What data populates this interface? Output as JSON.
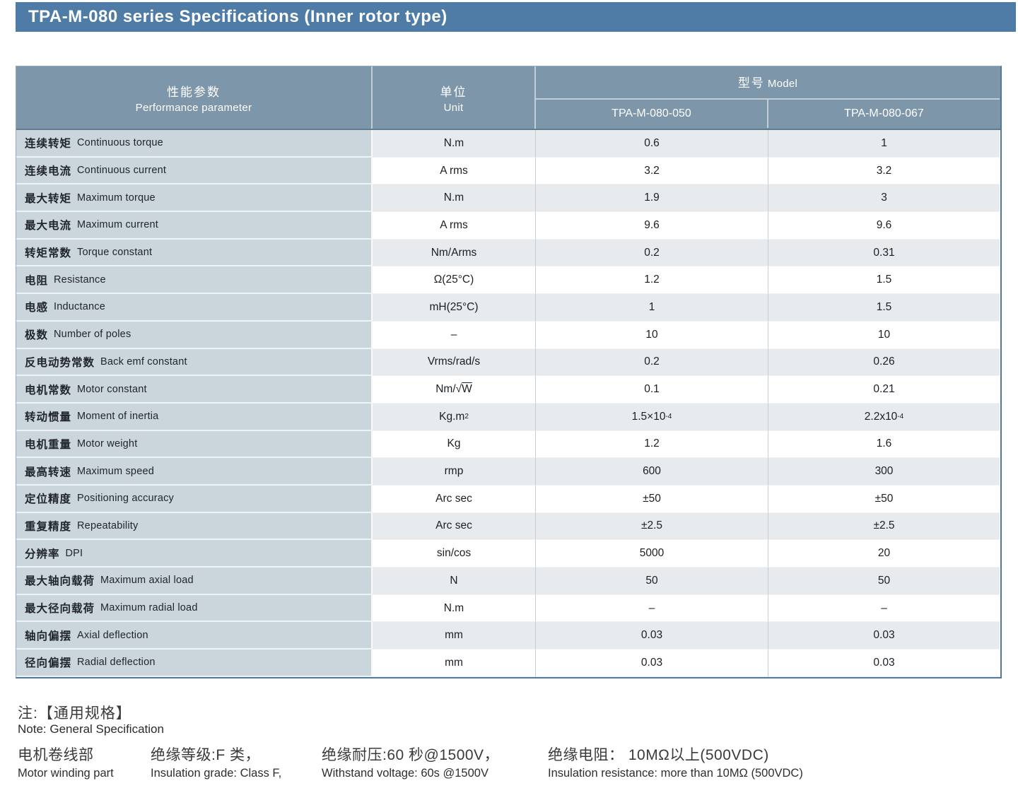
{
  "title": "TPA-M-080 series Specifications (Inner rotor type)",
  "colors": {
    "title_bar": "#4e7ca6",
    "header_bg": "#7e96a9",
    "param_col": "#cbd5dc",
    "row_alt": "#e8ebed",
    "outer_border": "#50799c"
  },
  "table": {
    "header": {
      "param_cn": "性能参数",
      "param_en": "Performance parameter",
      "unit_cn": "单位",
      "unit_en": "Unit",
      "model_cn": "型号",
      "model_en": "Model",
      "models": [
        "TPA-M-080-050",
        "TPA-M-080-067"
      ]
    },
    "rows": [
      {
        "cn": "连续转矩",
        "en": "Continuous torque",
        "unit": "N.m",
        "values": [
          "0.6",
          "1"
        ]
      },
      {
        "cn": "连续电流",
        "en": "Continuous current",
        "unit": "A rms",
        "values": [
          "3.2",
          "3.2"
        ]
      },
      {
        "cn": "最大转矩",
        "en": "Maximum torque",
        "unit": "N.m",
        "values": [
          "1.9",
          "3"
        ]
      },
      {
        "cn": "最大电流",
        "en": "Maximum current",
        "unit": "A rms",
        "values": [
          "9.6",
          "9.6"
        ]
      },
      {
        "cn": "转矩常数",
        "en": "Torque constant",
        "unit": "Nm/Arms",
        "values": [
          "0.2",
          "0.31"
        ]
      },
      {
        "cn": "电阻",
        "en": "Resistance",
        "unit": "Ω(25°C)",
        "values": [
          "1.2",
          "1.5"
        ]
      },
      {
        "cn": "电感",
        "en": "Inductance",
        "unit": "mH(25°C)",
        "values": [
          "1",
          "1.5"
        ]
      },
      {
        "cn": "极数",
        "en": "Number of poles",
        "unit": "–",
        "values": [
          "10",
          "10"
        ]
      },
      {
        "cn": "反电动势常数",
        "en": "Back emf constant",
        "unit": "Vrms/rad/s",
        "values": [
          "0.2",
          "0.26"
        ]
      },
      {
        "cn": "电机常数",
        "en": "Motor constant",
        "unit": "Nm/√W",
        "values": [
          "0.1",
          "0.21"
        ]
      },
      {
        "cn": "转动惯量",
        "en": "Moment of inertia",
        "unit": "Kg.m^2",
        "values": [
          "1.5×10^-4",
          "2.2x10^-4"
        ]
      },
      {
        "cn": "电机重量",
        "en": "Motor weight",
        "unit": "Kg",
        "values": [
          "1.2",
          "1.6"
        ]
      },
      {
        "cn": "最高转速",
        "en": "Maximum speed",
        "unit": "rmp",
        "values": [
          "600",
          "300"
        ]
      },
      {
        "cn": "定位精度",
        "en": "Positioning accuracy",
        "unit": "Arc sec",
        "values": [
          "±50",
          "±50"
        ]
      },
      {
        "cn": "重复精度",
        "en": "Repeatability",
        "unit": "Arc sec",
        "values": [
          "±2.5",
          "±2.5"
        ]
      },
      {
        "cn": "分辨率",
        "en": "DPI",
        "unit": "sin/cos",
        "values": [
          "5000",
          "20"
        ]
      },
      {
        "cn": "最大轴向载荷",
        "en": "Maximum axial load",
        "unit": "N",
        "values": [
          "50",
          "50"
        ]
      },
      {
        "cn": "最大径向载荷",
        "en": "Maximum radial load",
        "unit": "N.m",
        "values": [
          "–",
          "–"
        ]
      },
      {
        "cn": "轴向偏摆",
        "en": "Axial deflection",
        "unit": "mm",
        "values": [
          "0.03",
          "0.03"
        ]
      },
      {
        "cn": "径向偏摆",
        "en": "Radial deflection",
        "unit": "mm",
        "values": [
          "0.03",
          "0.03"
        ]
      }
    ]
  },
  "notes": {
    "title_cn": "注:【通用规格】",
    "title_en": "Note: General Specification",
    "items": [
      {
        "cn": "电机卷线部",
        "en": "Motor winding part"
      },
      {
        "cn": "绝缘等级:F 类，",
        "en": "Insulation grade: Class F,"
      },
      {
        "cn": "绝缘耐压:60 秒@1500V，",
        "en": "Withstand voltage: 60s @1500V"
      },
      {
        "cn": "绝缘电阻： 10MΩ以上(500VDC)",
        "en": "Insulation resistance: more than 10MΩ (500VDC)"
      }
    ]
  }
}
